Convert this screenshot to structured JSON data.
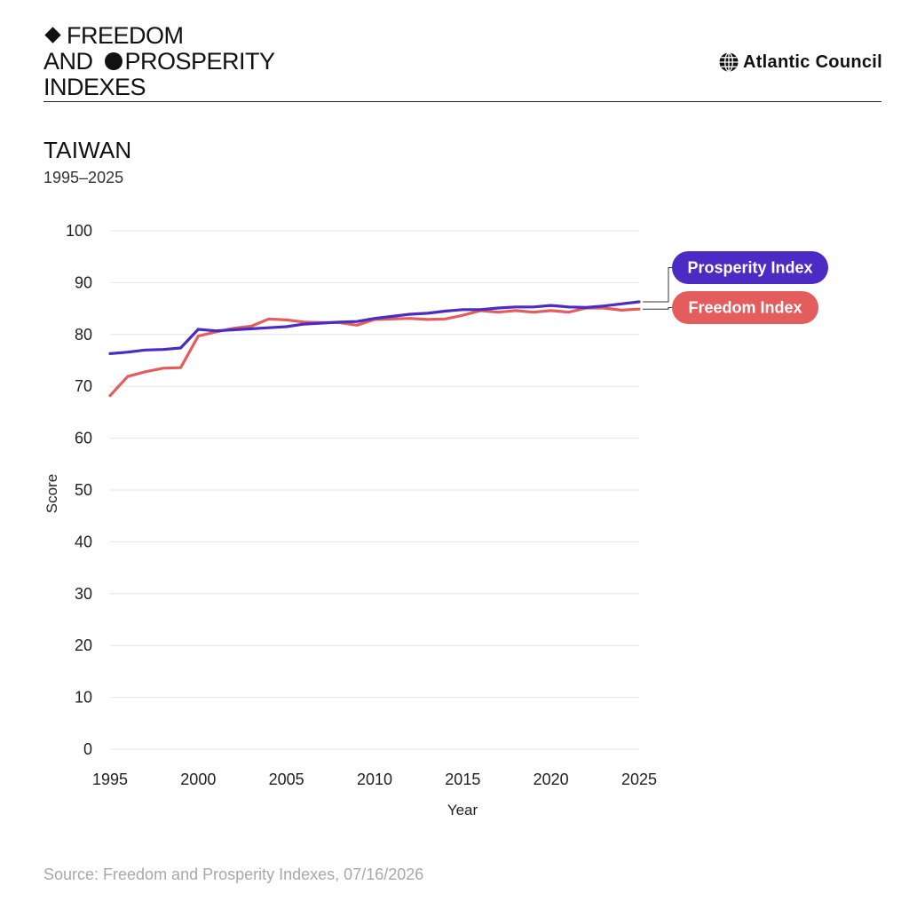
{
  "brand": {
    "line1": "FREEDOM",
    "line2_a": "AND ",
    "line2_b": "PROSPERITY",
    "line3": "INDEXES",
    "publisher": "Atlantic Council"
  },
  "header": {
    "title": "TAIWAN",
    "subtitle": "1995–2025"
  },
  "source": "Source: Freedom and Prosperity Indexes, 07/16/2026",
  "chart_data": {
    "type": "line",
    "title": "TAIWAN",
    "subtitle": "1995–2025",
    "xlabel": "Year",
    "ylabel": "Score",
    "xlim": [
      1995,
      2025
    ],
    "ylim": [
      0,
      100
    ],
    "xticks": [
      1995,
      2000,
      2005,
      2010,
      2015,
      2020,
      2025
    ],
    "yticks": [
      0,
      10,
      20,
      30,
      40,
      50,
      60,
      70,
      80,
      90,
      100
    ],
    "grid": true,
    "legend": "inline labels at right end of lines",
    "x": [
      1995,
      1996,
      1997,
      1998,
      1999,
      2000,
      2001,
      2002,
      2003,
      2004,
      2005,
      2006,
      2007,
      2008,
      2009,
      2010,
      2011,
      2012,
      2013,
      2014,
      2015,
      2016,
      2017,
      2018,
      2019,
      2020,
      2021,
      2022,
      2023,
      2024,
      2025
    ],
    "series": [
      {
        "name": "Prosperity Index",
        "color": "#4A2BC4",
        "values": [
          76.3,
          76.6,
          77.0,
          77.1,
          77.4,
          81.0,
          80.7,
          80.9,
          81.1,
          81.3,
          81.5,
          82.0,
          82.2,
          82.4,
          82.5,
          83.1,
          83.5,
          83.9,
          84.1,
          84.5,
          84.8,
          84.8,
          85.1,
          85.3,
          85.3,
          85.6,
          85.3,
          85.2,
          85.5,
          85.9,
          86.3
        ]
      },
      {
        "name": "Freedom Index",
        "color": "#E35D5D",
        "values": [
          68.2,
          71.9,
          72.8,
          73.5,
          73.6,
          79.7,
          80.5,
          81.2,
          81.6,
          83.0,
          82.8,
          82.4,
          82.3,
          82.3,
          81.8,
          82.9,
          83.0,
          83.1,
          82.9,
          83.0,
          83.7,
          84.6,
          84.3,
          84.6,
          84.3,
          84.6,
          84.3,
          85.1,
          85.1,
          84.7,
          84.9
        ]
      }
    ]
  }
}
